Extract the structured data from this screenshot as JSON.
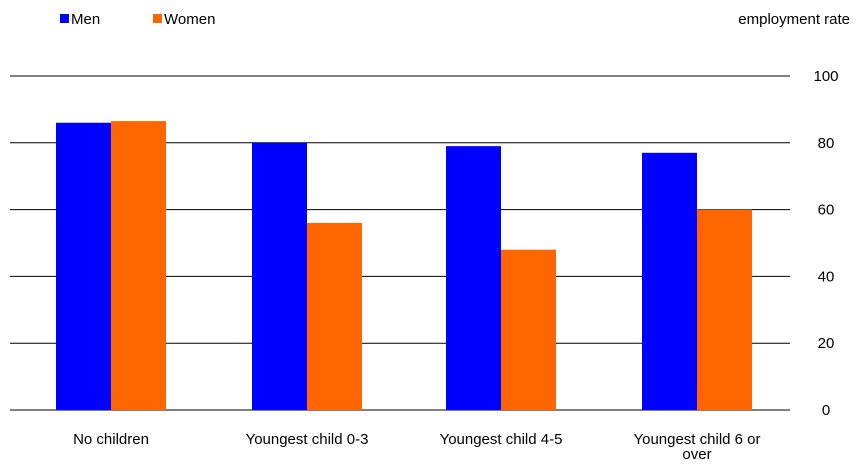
{
  "chart_data": {
    "type": "bar",
    "categories": [
      [
        "No children"
      ],
      [
        "Youngest child 0-3"
      ],
      [
        "Youngest child 4-5"
      ],
      [
        "Youngest child 6 or",
        "over"
      ]
    ],
    "series": [
      {
        "name": "Men",
        "color": "#0000FF",
        "values": [
          86,
          80,
          79,
          77
        ]
      },
      {
        "name": "Women",
        "color": "#FF6600",
        "values": [
          86.5,
          56,
          48,
          60
        ]
      }
    ],
    "ylabel": "employment rate",
    "ylim": [
      0,
      100
    ],
    "yticks": [
      0,
      20,
      40,
      60,
      80,
      100
    ],
    "y_axis_side": "right",
    "grid": true,
    "legend_position": "top-left"
  }
}
